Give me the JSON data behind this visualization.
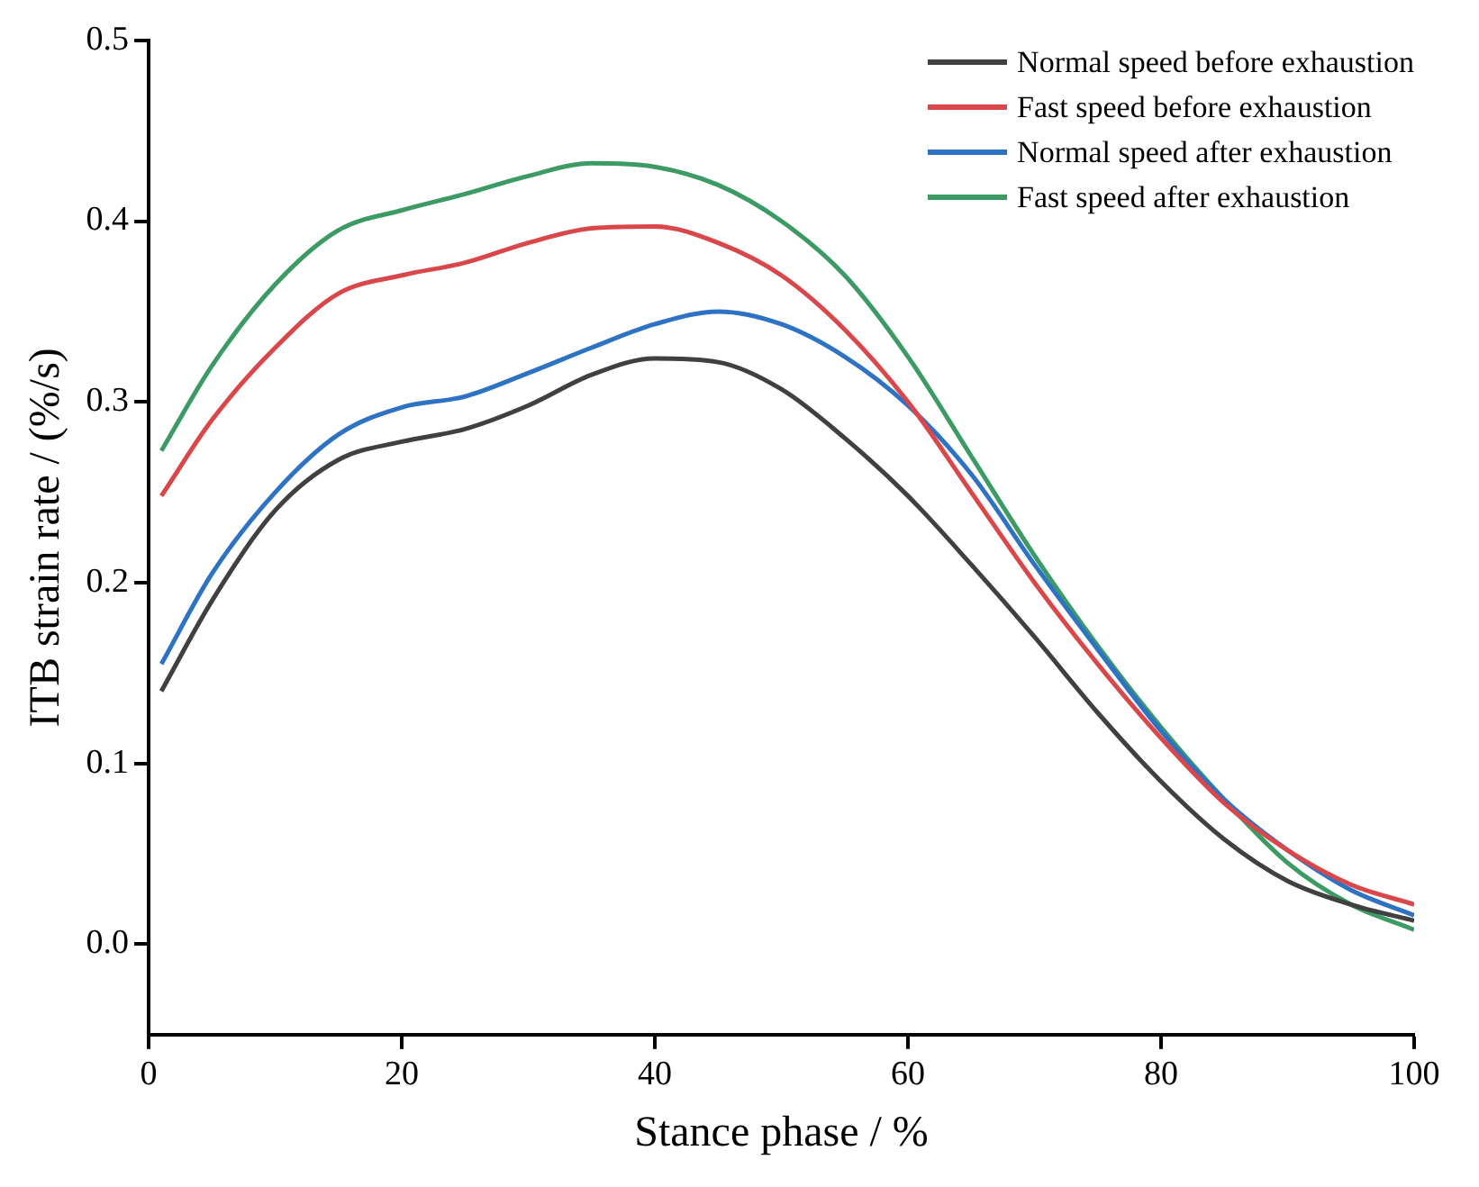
{
  "chart_data": {
    "type": "line",
    "xlabel": "Stance phase / %",
    "ylabel": "ITB strain rate / (%/s)",
    "xlim": [
      0,
      100
    ],
    "xticks": [
      0,
      20,
      40,
      60,
      80,
      100
    ],
    "ylim": [
      -0.05,
      0.5
    ],
    "yticks": [
      {
        "value": 0,
        "label": "0.0"
      },
      0.1,
      0.2,
      0.3,
      0.4,
      0.5
    ],
    "grid": false,
    "legend": "top right",
    "marker": "none",
    "line_style": "solid",
    "x": [
      1,
      5,
      10,
      15,
      20,
      25,
      30,
      35,
      40,
      45,
      50,
      55,
      60,
      65,
      70,
      75,
      80,
      85,
      90,
      95,
      100
    ],
    "series": [
      {
        "name": "Normal speed before exhaustion",
        "color": "#404040",
        "values": [
          0.14,
          0.19,
          0.24,
          0.268,
          0.278,
          0.285,
          0.298,
          0.315,
          0.324,
          0.322,
          0.307,
          0.28,
          0.248,
          0.21,
          0.17,
          0.128,
          0.09,
          0.058,
          0.035,
          0.022,
          0.013
        ]
      },
      {
        "name": "Fast speed before exhaustion",
        "color": "#d9474b",
        "values": [
          0.248,
          0.29,
          0.33,
          0.36,
          0.37,
          0.377,
          0.388,
          0.396,
          0.397,
          0.388,
          0.37,
          0.34,
          0.3,
          0.25,
          0.2,
          0.155,
          0.114,
          0.078,
          0.052,
          0.033,
          0.022
        ]
      },
      {
        "name": "Normal speed after exhaustion",
        "color": "#2e72c4",
        "values": [
          0.155,
          0.205,
          0.25,
          0.282,
          0.297,
          0.303,
          0.316,
          0.33,
          0.343,
          0.35,
          0.343,
          0.325,
          0.298,
          0.26,
          0.21,
          0.163,
          0.118,
          0.08,
          0.052,
          0.03,
          0.016
        ]
      },
      {
        "name": "Fast speed after exhaustion",
        "color": "#3c9a64",
        "values": [
          0.273,
          0.32,
          0.365,
          0.395,
          0.406,
          0.415,
          0.425,
          0.432,
          0.43,
          0.42,
          0.4,
          0.37,
          0.325,
          0.27,
          0.215,
          0.165,
          0.12,
          0.08,
          0.045,
          0.022,
          0.008
        ]
      }
    ]
  }
}
